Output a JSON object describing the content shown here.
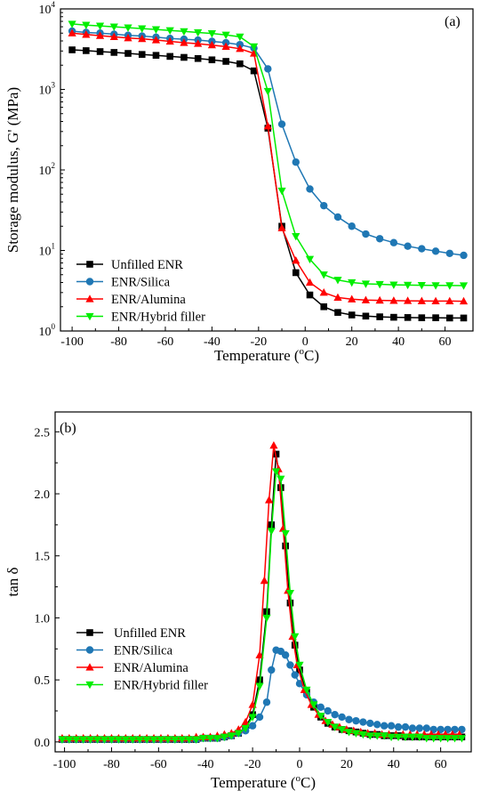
{
  "chart_data": [
    {
      "type": "line",
      "panel_label": "(a)",
      "xlabel": "Temperature (",
      "xlabel_sup": "o",
      "xlabel_end": "C)",
      "ylabel": "Storage modulus, G' (MPa)",
      "yscale": "log",
      "xlim": [
        -105,
        72
      ],
      "ylim": [
        1,
        10000
      ],
      "xticks": [
        -100,
        -80,
        -60,
        -40,
        -20,
        0,
        20,
        40,
        60
      ],
      "xtick_labels": [
        "-100",
        "-80",
        "-60",
        "-40",
        "-20",
        "0",
        "20",
        "40",
        "60"
      ],
      "yticks": [
        1,
        10,
        100,
        1000,
        10000
      ],
      "ytick_base": [
        "10",
        "10",
        "10",
        "10",
        "10"
      ],
      "ytick_exp": [
        "0",
        "1",
        "2",
        "3",
        "4"
      ],
      "legend_position": "bottom-left",
      "series": [
        {
          "name": "Unfilled ENR",
          "color": "#000000",
          "marker": "square",
          "x": [
            -100,
            -94,
            -88,
            -82,
            -76,
            -70,
            -64,
            -58,
            -52,
            -46,
            -40,
            -34,
            -28,
            -22,
            -16,
            -10,
            -4,
            2,
            8,
            14,
            20,
            26,
            32,
            38,
            44,
            50,
            56,
            62,
            68
          ],
          "y": [
            3100,
            3030,
            2950,
            2880,
            2800,
            2720,
            2650,
            2570,
            2500,
            2420,
            2330,
            2230,
            2080,
            1700,
            330,
            20,
            5.3,
            2.8,
            2.0,
            1.7,
            1.58,
            1.53,
            1.5,
            1.48,
            1.47,
            1.46,
            1.46,
            1.45,
            1.45
          ]
        },
        {
          "name": "ENR/Silica",
          "color": "#1f77b4",
          "marker": "circle",
          "x": [
            -100,
            -94,
            -88,
            -82,
            -76,
            -70,
            -64,
            -58,
            -52,
            -46,
            -40,
            -34,
            -28,
            -22,
            -16,
            -10,
            -4,
            2,
            8,
            14,
            20,
            26,
            32,
            38,
            44,
            50,
            56,
            62,
            68
          ],
          "y": [
            5300,
            5100,
            5000,
            4850,
            4700,
            4600,
            4450,
            4300,
            4200,
            4100,
            3950,
            3800,
            3600,
            3250,
            1800,
            370,
            125,
            58,
            36,
            26,
            20,
            16,
            14,
            12.5,
            11.3,
            10.5,
            9.8,
            9.2,
            8.7
          ]
        },
        {
          "name": "ENR/Alumina",
          "color": "#ff0000",
          "marker": "triangle-up",
          "x": [
            -100,
            -94,
            -88,
            -82,
            -76,
            -70,
            -64,
            -58,
            -52,
            -46,
            -40,
            -34,
            -28,
            -22,
            -16,
            -10,
            -4,
            2,
            8,
            14,
            20,
            26,
            32,
            38,
            44,
            50,
            56,
            62,
            68
          ],
          "y": [
            5000,
            4800,
            4650,
            4500,
            4350,
            4250,
            4100,
            3950,
            3800,
            3700,
            3550,
            3400,
            3200,
            2800,
            350,
            19,
            7.5,
            4.0,
            3.0,
            2.6,
            2.48,
            2.42,
            2.4,
            2.38,
            2.37,
            2.36,
            2.35,
            2.35,
            2.34
          ]
        },
        {
          "name": "ENR/Hybrid filler",
          "color": "#00ee00",
          "marker": "triangle-down",
          "x": [
            -100,
            -94,
            -88,
            -82,
            -76,
            -70,
            -64,
            -58,
            -52,
            -46,
            -40,
            -34,
            -28,
            -22,
            -16,
            -10,
            -4,
            2,
            8,
            14,
            20,
            26,
            32,
            38,
            44,
            50,
            56,
            62,
            68
          ],
          "y": [
            6500,
            6300,
            6150,
            6000,
            5850,
            5700,
            5550,
            5400,
            5250,
            5100,
            4950,
            4750,
            4500,
            3400,
            950,
            55,
            15,
            7.8,
            5.0,
            4.3,
            4.0,
            3.85,
            3.8,
            3.75,
            3.72,
            3.7,
            3.68,
            3.67,
            3.66
          ]
        }
      ]
    },
    {
      "type": "line",
      "panel_label": "(b)",
      "xlabel": "Temperature (",
      "xlabel_sup": "o",
      "xlabel_end": "C)",
      "ylabel": "tan δ",
      "xlim": [
        -104,
        73
      ],
      "ylim": [
        -0.08,
        2.66
      ],
      "xticks": [
        -100,
        -80,
        -60,
        -40,
        -20,
        0,
        20,
        40,
        60
      ],
      "xtick_labels": [
        "-100",
        "-80",
        "-60",
        "-40",
        "-20",
        "0",
        "20",
        "40",
        "60"
      ],
      "yticks": [
        0,
        0.5,
        1,
        1.5,
        2,
        2.5
      ],
      "ytick_labels": [
        "0.0",
        "0.5",
        "1.0",
        "1.5",
        "2.0",
        "2.5"
      ],
      "legend_position": "middle-left",
      "series": [
        {
          "name": "Unfilled ENR",
          "color": "#000000",
          "marker": "square",
          "x": [
            -101,
            -98,
            -95,
            -92,
            -89,
            -86,
            -83,
            -80,
            -77,
            -74,
            -71,
            -68,
            -65,
            -62,
            -59,
            -56,
            -53,
            -50,
            -47,
            -44,
            -41,
            -38,
            -35,
            -32,
            -29,
            -26,
            -23,
            -20,
            -17,
            -14,
            -12,
            -10,
            -8,
            -6,
            -4,
            -2,
            0,
            3,
            6,
            9,
            12,
            15,
            18,
            21,
            24,
            27,
            30,
            33,
            36,
            39,
            42,
            45,
            48,
            51,
            54,
            57,
            60,
            63,
            66,
            69
          ],
          "y": [
            0.02,
            0.02,
            0.02,
            0.02,
            0.02,
            0.02,
            0.02,
            0.02,
            0.02,
            0.02,
            0.02,
            0.02,
            0.02,
            0.02,
            0.02,
            0.02,
            0.02,
            0.02,
            0.02,
            0.02,
            0.03,
            0.03,
            0.03,
            0.04,
            0.05,
            0.07,
            0.12,
            0.22,
            0.5,
            1.05,
            1.75,
            2.32,
            2.05,
            1.58,
            1.12,
            0.78,
            0.58,
            0.4,
            0.28,
            0.2,
            0.15,
            0.12,
            0.1,
            0.09,
            0.08,
            0.07,
            0.06,
            0.06,
            0.05,
            0.05,
            0.05,
            0.04,
            0.04,
            0.04,
            0.04,
            0.04,
            0.04,
            0.04,
            0.04,
            0.04
          ]
        },
        {
          "name": "ENR/Silica",
          "color": "#1f77b4",
          "marker": "circle",
          "x": [
            -101,
            -98,
            -95,
            -92,
            -89,
            -86,
            -83,
            -80,
            -77,
            -74,
            -71,
            -68,
            -65,
            -62,
            -59,
            -56,
            -53,
            -50,
            -47,
            -44,
            -41,
            -38,
            -35,
            -32,
            -29,
            -26,
            -23,
            -20,
            -17,
            -14,
            -12,
            -10,
            -8,
            -6,
            -4,
            -2,
            0,
            3,
            6,
            9,
            12,
            15,
            18,
            21,
            24,
            27,
            30,
            33,
            36,
            39,
            42,
            45,
            48,
            51,
            54,
            57,
            60,
            63,
            66,
            69
          ],
          "y": [
            0.02,
            0.02,
            0.02,
            0.02,
            0.02,
            0.02,
            0.02,
            0.02,
            0.02,
            0.02,
            0.02,
            0.02,
            0.02,
            0.02,
            0.02,
            0.02,
            0.02,
            0.02,
            0.02,
            0.02,
            0.03,
            0.03,
            0.03,
            0.04,
            0.05,
            0.07,
            0.09,
            0.13,
            0.2,
            0.32,
            0.58,
            0.74,
            0.73,
            0.7,
            0.62,
            0.54,
            0.47,
            0.38,
            0.32,
            0.28,
            0.25,
            0.22,
            0.2,
            0.18,
            0.17,
            0.16,
            0.15,
            0.14,
            0.13,
            0.13,
            0.12,
            0.12,
            0.11,
            0.11,
            0.11,
            0.1,
            0.1,
            0.1,
            0.1,
            0.1
          ]
        },
        {
          "name": "ENR/Alumina",
          "color": "#ff0000",
          "marker": "triangle-up",
          "x": [
            -101,
            -98,
            -95,
            -92,
            -89,
            -86,
            -83,
            -80,
            -77,
            -74,
            -71,
            -68,
            -65,
            -62,
            -59,
            -56,
            -53,
            -50,
            -47,
            -44,
            -41,
            -38,
            -35,
            -32,
            -29,
            -26,
            -23,
            -20,
            -17,
            -15,
            -13,
            -11,
            -9,
            -7,
            -5,
            -3,
            -1,
            2,
            5,
            8,
            11,
            14,
            17,
            20,
            23,
            26,
            29,
            32,
            35,
            38,
            41,
            44,
            47,
            50,
            53,
            56,
            59,
            62,
            65,
            68
          ],
          "y": [
            0.03,
            0.03,
            0.03,
            0.03,
            0.03,
            0.03,
            0.03,
            0.03,
            0.03,
            0.03,
            0.03,
            0.03,
            0.03,
            0.03,
            0.03,
            0.03,
            0.03,
            0.03,
            0.03,
            0.04,
            0.04,
            0.04,
            0.05,
            0.06,
            0.07,
            0.1,
            0.16,
            0.3,
            0.7,
            1.3,
            1.95,
            2.39,
            2.2,
            1.72,
            1.22,
            0.85,
            0.62,
            0.42,
            0.3,
            0.22,
            0.17,
            0.14,
            0.12,
            0.1,
            0.09,
            0.08,
            0.07,
            0.07,
            0.06,
            0.06,
            0.06,
            0.06,
            0.06,
            0.06,
            0.06,
            0.06,
            0.06,
            0.06,
            0.06,
            0.06
          ]
        },
        {
          "name": "ENR/Hybrid filler",
          "color": "#00ee00",
          "marker": "triangle-down",
          "x": [
            -101,
            -98,
            -95,
            -92,
            -89,
            -86,
            -83,
            -80,
            -77,
            -74,
            -71,
            -68,
            -65,
            -62,
            -59,
            -56,
            -53,
            -50,
            -47,
            -44,
            -41,
            -38,
            -35,
            -32,
            -29,
            -26,
            -23,
            -20,
            -17,
            -14,
            -12,
            -10,
            -8,
            -6,
            -4,
            -2,
            0,
            3,
            6,
            9,
            12,
            15,
            18,
            21,
            24,
            27,
            30,
            33,
            36,
            39,
            42,
            45,
            48,
            51,
            54,
            57,
            60,
            63,
            66,
            69
          ],
          "y": [
            0.02,
            0.02,
            0.02,
            0.02,
            0.02,
            0.02,
            0.02,
            0.02,
            0.02,
            0.02,
            0.02,
            0.02,
            0.02,
            0.02,
            0.02,
            0.02,
            0.02,
            0.02,
            0.02,
            0.02,
            0.03,
            0.03,
            0.03,
            0.04,
            0.05,
            0.07,
            0.11,
            0.2,
            0.45,
            1.0,
            1.7,
            2.18,
            2.12,
            1.68,
            1.2,
            0.85,
            0.62,
            0.42,
            0.3,
            0.21,
            0.16,
            0.12,
            0.1,
            0.08,
            0.07,
            0.06,
            0.05,
            0.05,
            0.05,
            0.04,
            0.04,
            0.04,
            0.04,
            0.04,
            0.03,
            0.03,
            0.03,
            0.03,
            0.03,
            0.03
          ]
        }
      ]
    }
  ]
}
